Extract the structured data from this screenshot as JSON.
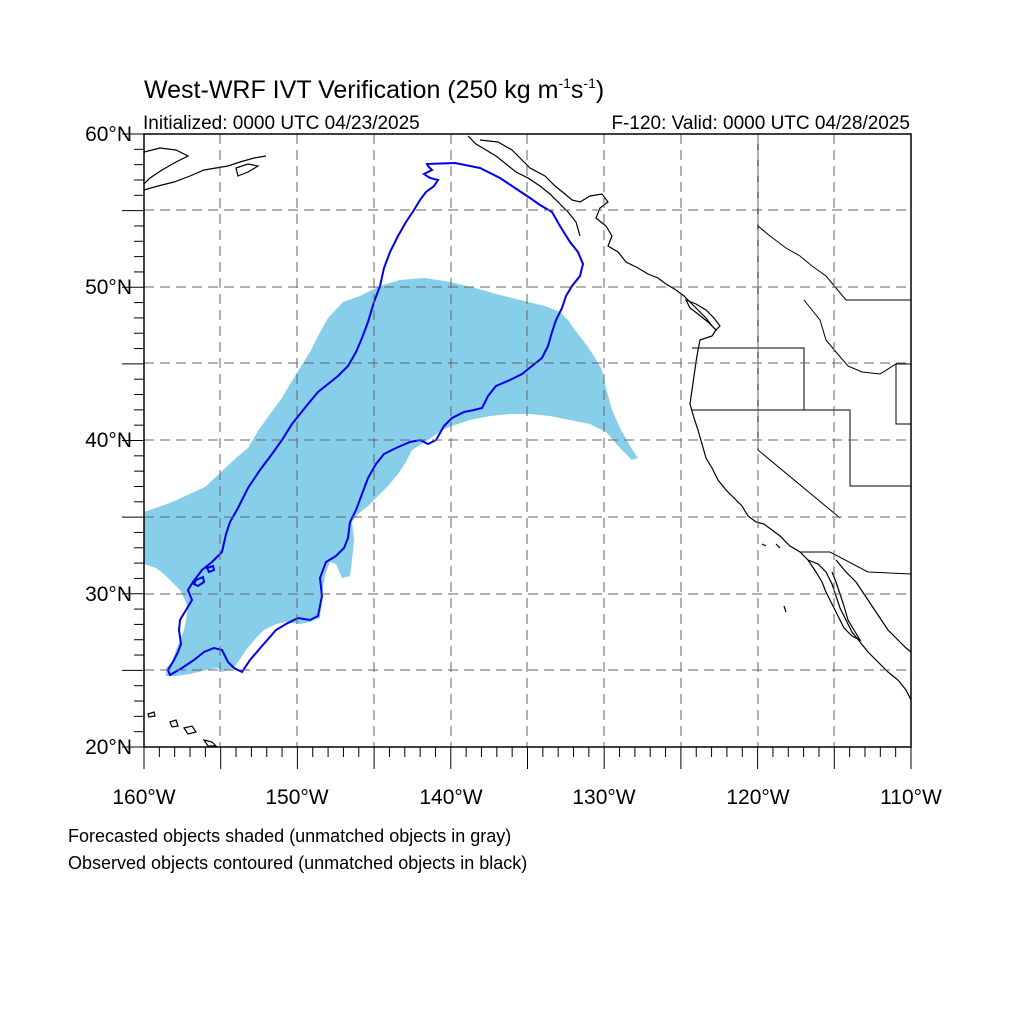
{
  "title": {
    "main": "West-WRF IVT Verification (250 kg m",
    "exp1": "-1",
    "mid": "s",
    "exp2": "-1",
    "end": ")"
  },
  "subtitle_left": "Initialized: 0000 UTC 04/23/2025",
  "subtitle_right": "F-120: Valid: 0000 UTC 04/28/2025",
  "map": {
    "lon_range": [
      -160,
      -110
    ],
    "lat_range": [
      20,
      60
    ],
    "grid": "dashed, every 5 degrees",
    "lon_ticks": [
      "160°W",
      "150°W",
      "140°W",
      "130°W",
      "120°W",
      "110°W"
    ],
    "lat_ticks": [
      "60°N",
      "50°N",
      "40°N",
      "30°N",
      "20°N"
    ],
    "colors": {
      "forecast_fill": "#87ceeb",
      "observed_contour": "#0000ee",
      "coastline": "#000000",
      "grid": "#666666"
    }
  },
  "notes": [
    "Forecasted objects shaded (unmatched objects in gray)",
    "Observed objects contoured (unmatched objects in black)"
  ]
}
